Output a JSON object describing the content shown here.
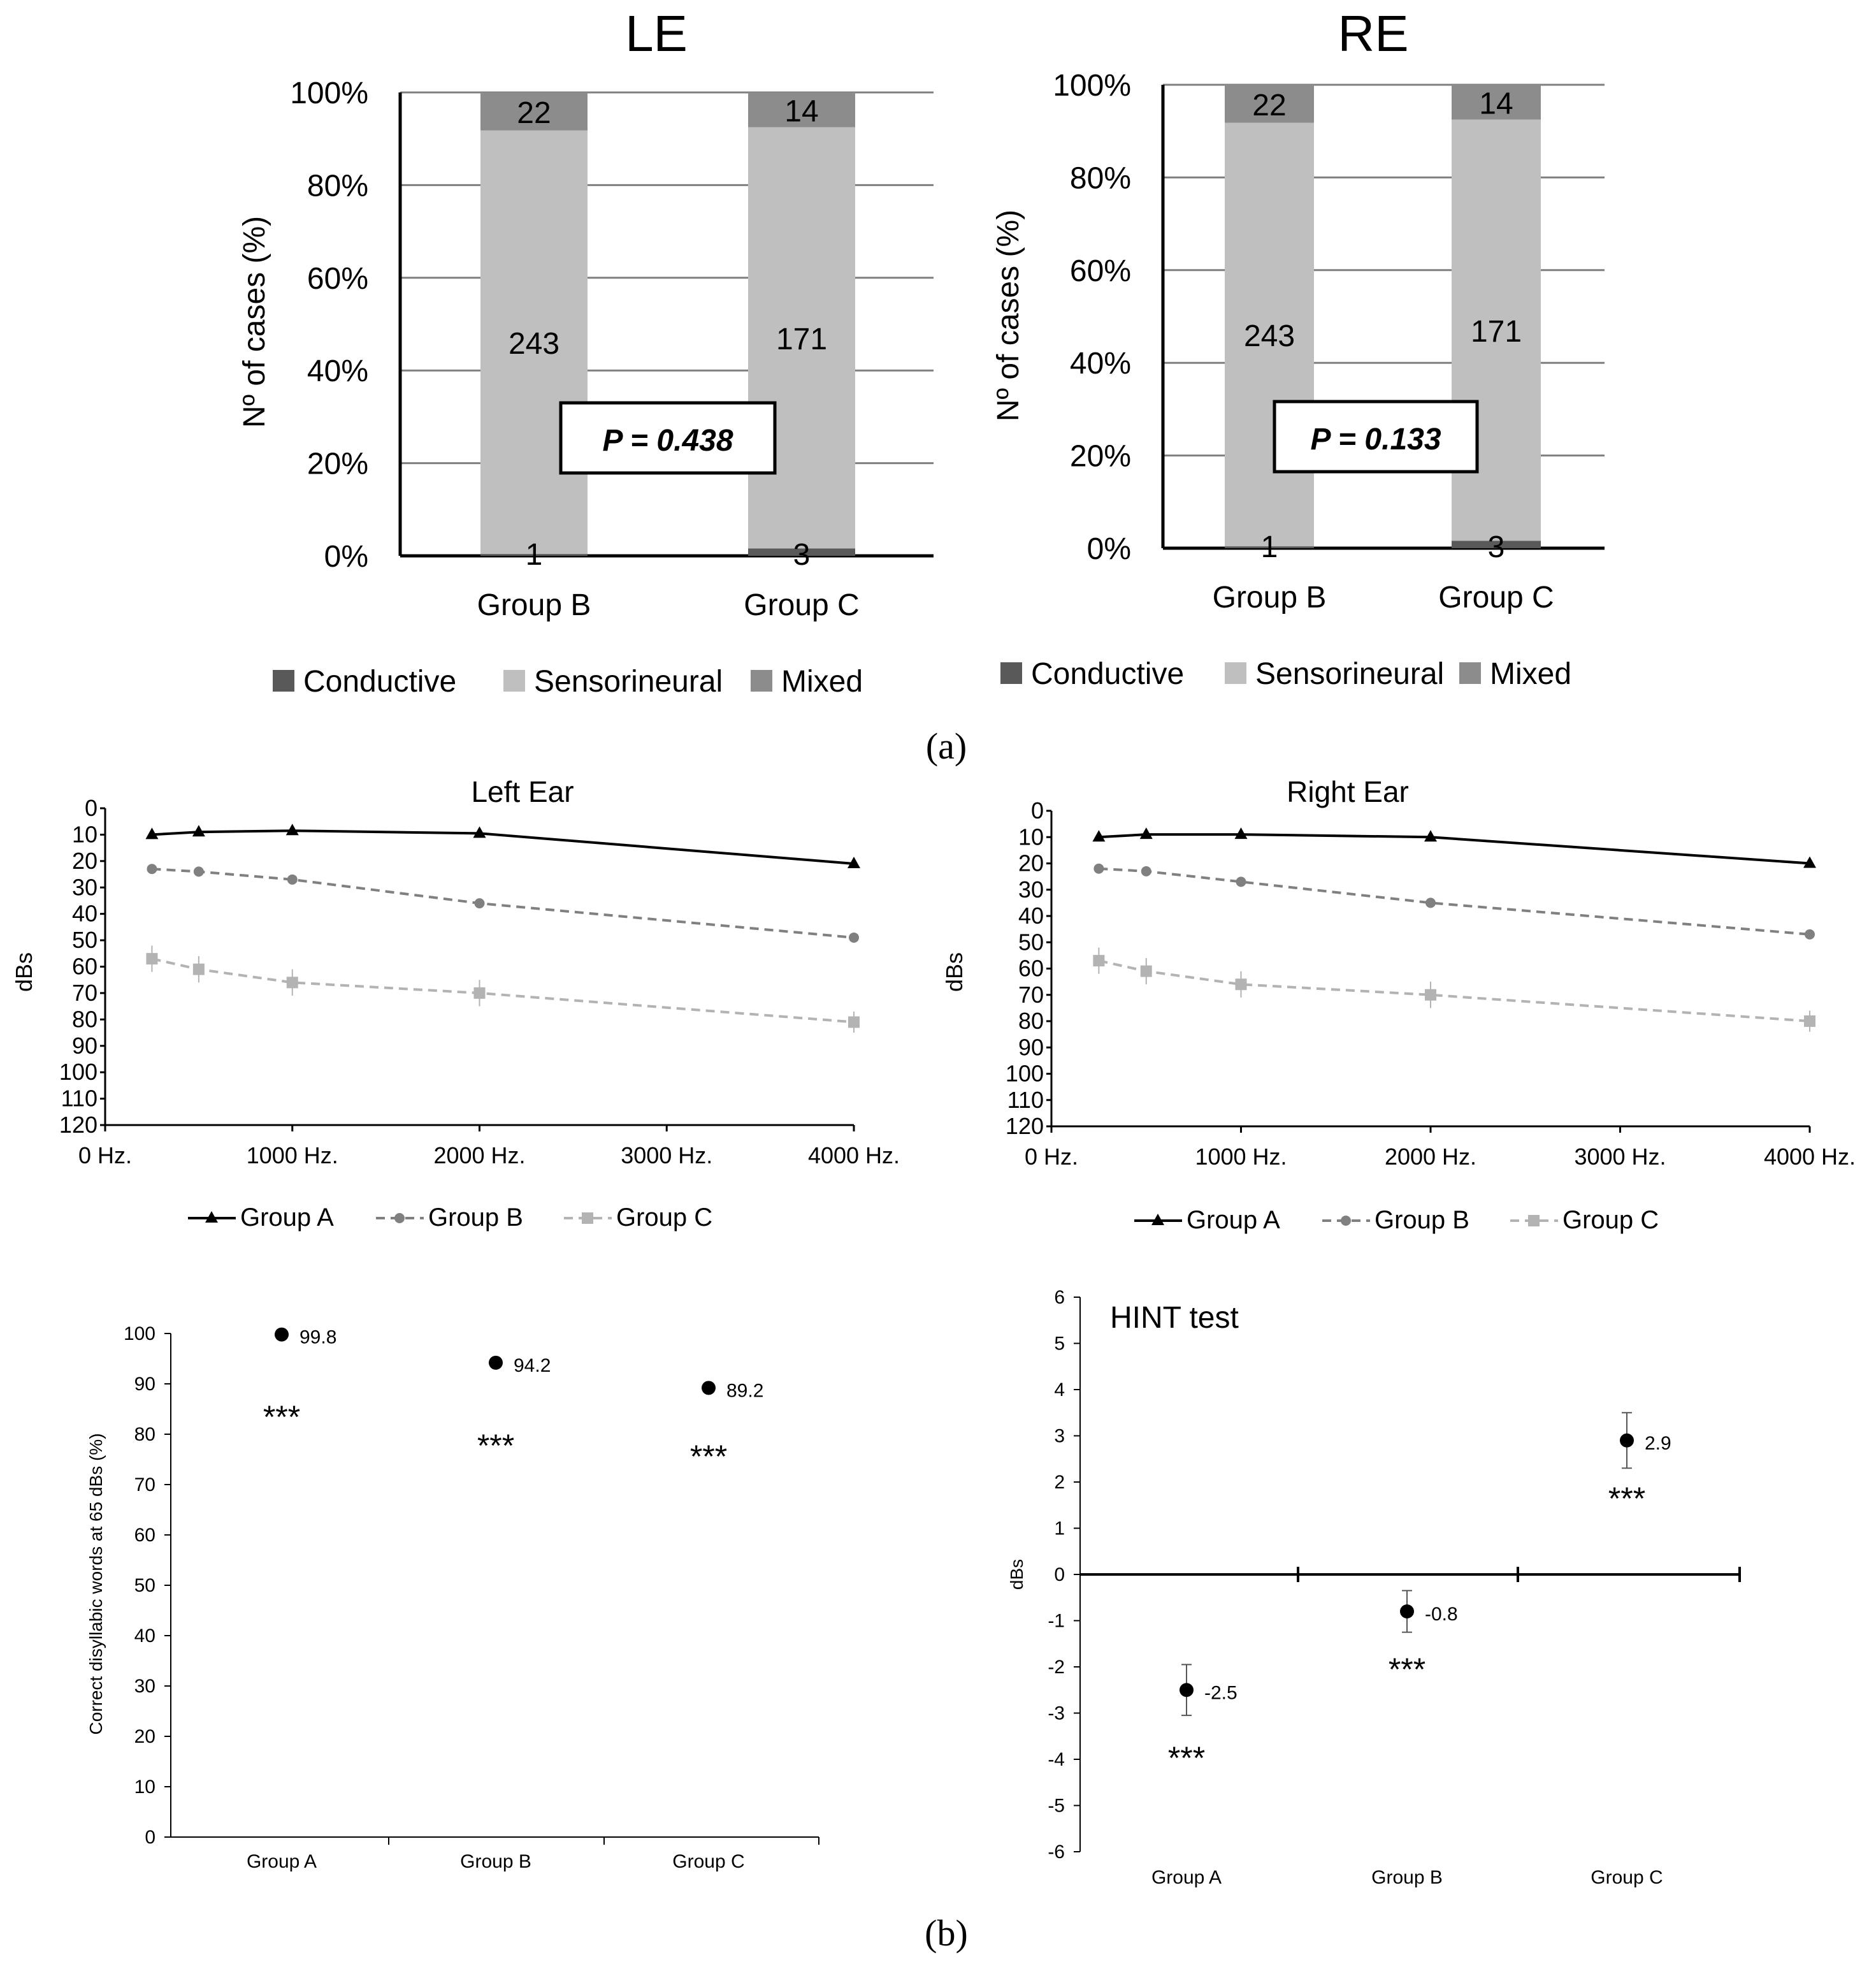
{
  "panel_labels": {
    "a": "(a)",
    "b": "(b)"
  },
  "chart_data": [
    {
      "id": "le_bar",
      "type": "bar",
      "stacked": true,
      "title": "LE",
      "ylabel": "Nº of cases (%)",
      "ylim": [
        0,
        100
      ],
      "yticks": [
        "0%",
        "20%",
        "40%",
        "60%",
        "80%",
        "100%"
      ],
      "categories": [
        "Group B",
        "Group C"
      ],
      "series": [
        {
          "name": "Conductive",
          "color": "#595959",
          "values": [
            0.4,
            1.6
          ],
          "labels": [
            "1",
            "3"
          ]
        },
        {
          "name": "Sensorineural",
          "color": "#bfbfbf",
          "values": [
            91.4,
            90.9
          ],
          "labels": [
            "243",
            "171"
          ]
        },
        {
          "name": "Mixed",
          "color": "#8c8c8c",
          "values": [
            8.2,
            7.5
          ],
          "labels": [
            "22",
            "14"
          ]
        }
      ],
      "annotation": "P = 0.438"
    },
    {
      "id": "re_bar",
      "type": "bar",
      "stacked": true,
      "title": "RE",
      "ylabel": "Nº of cases (%)",
      "ylim": [
        0,
        100
      ],
      "yticks": [
        "0%",
        "20%",
        "40%",
        "60%",
        "80%",
        "100%"
      ],
      "categories": [
        "Group B",
        "Group C"
      ],
      "series": [
        {
          "name": "Conductive",
          "color": "#595959",
          "values": [
            0.4,
            1.6
          ],
          "labels": [
            "1",
            "3"
          ]
        },
        {
          "name": "Sensorineural",
          "color": "#bfbfbf",
          "values": [
            91.4,
            90.9
          ],
          "labels": [
            "243",
            "171"
          ]
        },
        {
          "name": "Mixed",
          "color": "#8c8c8c",
          "values": [
            8.2,
            7.5
          ],
          "labels": [
            "22",
            "14"
          ]
        }
      ],
      "annotation": "P = 0.133"
    },
    {
      "id": "left_ear",
      "type": "line",
      "title": "Left Ear",
      "ylabel": "dBs",
      "xlim": [
        0,
        4000
      ],
      "ylim": [
        0,
        120
      ],
      "y_inverted": true,
      "xticks": [
        0,
        1000,
        2000,
        3000,
        4000
      ],
      "xtick_labels": [
        "0 Hz.",
        "1000 Hz.",
        "2000 Hz.",
        "3000 Hz.",
        "4000 Hz."
      ],
      "yticks": [
        0,
        10,
        20,
        30,
        40,
        50,
        60,
        70,
        80,
        90,
        100,
        110,
        120
      ],
      "x": [
        250,
        500,
        1000,
        2000,
        4000
      ],
      "series": [
        {
          "name": "Group A",
          "color": "#000000",
          "dash": "solid",
          "marker": "triangle",
          "values": [
            10,
            9,
            8.5,
            9.5,
            21
          ],
          "err": [
            0.8,
            0.8,
            0.8,
            0.8,
            1
          ]
        },
        {
          "name": "Group B",
          "color": "#808080",
          "dash": "dashed",
          "marker": "circle",
          "values": [
            23,
            24,
            27,
            36,
            49
          ],
          "err": [
            1.5,
            1.5,
            1.5,
            1.5,
            1.5
          ]
        },
        {
          "name": "Group C",
          "color": "#b3b3b3",
          "dash": "dashed",
          "marker": "square",
          "values": [
            57,
            61,
            66,
            70,
            81
          ],
          "err": [
            5,
            5,
            5,
            5,
            4
          ]
        }
      ]
    },
    {
      "id": "right_ear",
      "type": "line",
      "title": "Right Ear",
      "ylabel": "dBs",
      "xlim": [
        0,
        4000
      ],
      "ylim": [
        0,
        120
      ],
      "y_inverted": true,
      "xticks": [
        0,
        1000,
        2000,
        3000,
        4000
      ],
      "xtick_labels": [
        "0 Hz.",
        "1000 Hz.",
        "2000 Hz.",
        "3000 Hz.",
        "4000 Hz."
      ],
      "yticks": [
        0,
        10,
        20,
        30,
        40,
        50,
        60,
        70,
        80,
        90,
        100,
        110,
        120
      ],
      "x": [
        250,
        500,
        1000,
        2000,
        4000
      ],
      "series": [
        {
          "name": "Group A",
          "color": "#000000",
          "dash": "solid",
          "marker": "triangle",
          "values": [
            10,
            9,
            9,
            10,
            20
          ],
          "err": [
            0.8,
            0.8,
            0.8,
            0.8,
            1
          ]
        },
        {
          "name": "Group B",
          "color": "#808080",
          "dash": "dashed",
          "marker": "circle",
          "values": [
            22,
            23,
            27,
            35,
            47
          ],
          "err": [
            1.5,
            1.5,
            1.5,
            1.5,
            1.5
          ]
        },
        {
          "name": "Group C",
          "color": "#b3b3b3",
          "dash": "dashed",
          "marker": "square",
          "values": [
            57,
            61,
            66,
            70,
            80
          ],
          "err": [
            5,
            5,
            5,
            5,
            4
          ]
        }
      ]
    },
    {
      "id": "disyllabic",
      "type": "scatter",
      "title": "",
      "ylabel": "Correct disyllabic words at 65 dBs (%)",
      "ylim": [
        0,
        100
      ],
      "yticks": [
        0,
        10,
        20,
        30,
        40,
        50,
        60,
        70,
        80,
        90,
        100
      ],
      "categories": [
        "Group A",
        "Group B",
        "Group C"
      ],
      "values": [
        99.8,
        94.2,
        89.2
      ],
      "value_labels": [
        "99.8",
        "94.2",
        "89.2"
      ],
      "err": [
        0.3,
        0.6,
        0.8
      ],
      "significance": [
        "***",
        "***",
        "***"
      ]
    },
    {
      "id": "hint",
      "type": "scatter",
      "title": "HINT test",
      "ylabel": "dBs",
      "ylim": [
        -6,
        6
      ],
      "yticks": [
        -6,
        -5,
        -4,
        -3,
        -2,
        -1,
        0,
        1,
        2,
        3,
        4,
        5,
        6
      ],
      "categories": [
        "Group A",
        "Group B",
        "Group C"
      ],
      "values": [
        -2.5,
        -0.8,
        2.9
      ],
      "value_labels": [
        "-2.5",
        "-0.8",
        "2.9"
      ],
      "err": [
        0.55,
        0.45,
        0.6
      ],
      "significance": [
        "***",
        "***",
        "***"
      ]
    }
  ]
}
